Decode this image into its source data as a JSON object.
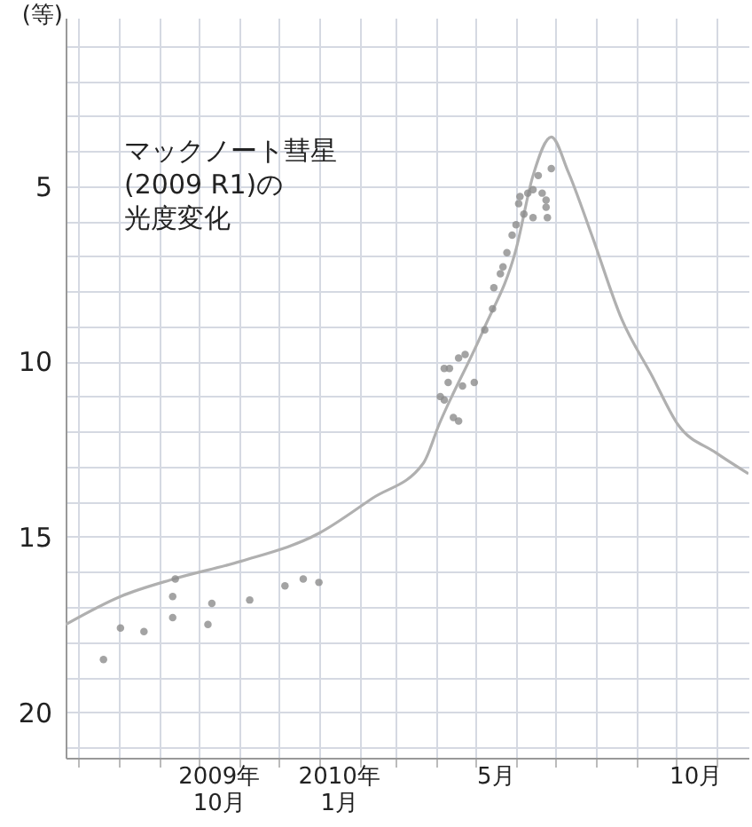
{
  "chart_data": {
    "type": "scatter",
    "ylabel": "(等)",
    "annotations": [
      "マックノート彗星(2009 R1)の光度変化"
    ],
    "xlim": [
      "2009-06-21",
      "2010-11-26"
    ],
    "xticks": [
      {
        "value": "2009-07-01",
        "label": null
      },
      {
        "value": "2009-08-01",
        "label": null
      },
      {
        "value": "2009-09-01",
        "label": null
      },
      {
        "value": "2009-10-01",
        "label": null
      },
      {
        "value": "2009-10-16",
        "label": "2009年\n10月"
      },
      {
        "value": "2009-11-01",
        "label": null
      },
      {
        "value": "2009-12-01",
        "label": null
      },
      {
        "value": "2010-01-01",
        "label": null
      },
      {
        "value": "2010-01-16",
        "label": "2010年\n1月"
      },
      {
        "value": "2010-02-01",
        "label": null
      },
      {
        "value": "2010-03-01",
        "label": null
      },
      {
        "value": "2010-04-01",
        "label": null
      },
      {
        "value": "2010-05-01",
        "label": null
      },
      {
        "value": "2010-05-16",
        "label": "5月"
      },
      {
        "value": "2010-06-01",
        "label": null
      },
      {
        "value": "2010-07-01",
        "label": null
      },
      {
        "value": "2010-08-01",
        "label": null
      },
      {
        "value": "2010-09-01",
        "label": null
      },
      {
        "value": "2010-10-01",
        "label": null
      },
      {
        "value": "2010-10-16",
        "label": "10月"
      },
      {
        "value": "2010-11-01",
        "label": null
      }
    ],
    "ylim": [
      21.3,
      0.2
    ],
    "yticks": [
      {
        "value": 1,
        "label": null
      },
      {
        "value": 2,
        "label": null
      },
      {
        "value": 3,
        "label": null
      },
      {
        "value": 4,
        "label": null
      },
      5,
      {
        "value": 6,
        "label": null
      },
      {
        "value": 7,
        "label": null
      },
      {
        "value": 8,
        "label": null
      },
      {
        "value": 9,
        "label": null
      },
      10,
      {
        "value": 11,
        "label": null
      },
      {
        "value": 12,
        "label": null
      },
      {
        "value": 13,
        "label": null
      },
      {
        "value": 14,
        "label": null
      },
      15,
      {
        "value": 16,
        "label": null
      },
      {
        "value": 17,
        "label": null
      },
      {
        "value": 18,
        "label": null
      },
      {
        "value": 19,
        "label": null
      },
      20,
      {
        "value": 21,
        "label": null
      }
    ],
    "grid": true,
    "series": [
      {
        "type": "line",
        "color": "#b0b0b0",
        "x": [
          "2009-06-21",
          "2009-08-02",
          "2009-09-12",
          "2009-11-02",
          "2010-01-01",
          "2010-02-11",
          "2010-03-22",
          "2010-04-03",
          "2010-05-07",
          "2010-06-01",
          "2010-06-14",
          "2010-06-28",
          "2010-07-11",
          "2010-07-29",
          "2010-08-21",
          "2010-09-13",
          "2010-10-03",
          "2010-11-01",
          "2010-11-26"
        ],
        "values": [
          17.5,
          16.7,
          16.2,
          15.7,
          14.9,
          13.9,
          12.9,
          11.8,
          9.1,
          6.8,
          4.7,
          3.6,
          4.6,
          6.4,
          8.8,
          10.4,
          11.8,
          12.6,
          13.2
        ]
      },
      {
        "type": "scatter",
        "marker": "circle",
        "color": "#8c8c8c",
        "x": [
          "2009-07-20",
          "2009-08-02",
          "2009-08-20",
          "2009-09-11",
          "2009-09-11",
          "2009-09-13",
          "2009-10-08",
          "2009-10-11",
          "2009-11-09",
          "2009-12-06",
          "2009-12-20",
          "2010-01-01",
          "2010-04-07",
          "2010-04-11",
          "2010-04-18",
          "2010-04-23",
          "2010-04-10",
          "2010-04-07",
          "2010-04-21",
          "2010-04-30",
          "2010-04-14",
          "2010-04-18",
          "2010-04-04",
          "2010-05-08",
          "2010-05-14",
          "2010-05-15",
          "2010-05-20",
          "2010-05-22",
          "2010-05-25",
          "2010-05-29",
          "2010-06-01",
          "2010-06-03",
          "2010-06-04",
          "2010-06-10",
          "2010-06-14",
          "2010-06-21",
          "2010-06-07",
          "2010-06-14",
          "2010-06-25",
          "2010-06-24",
          "2010-06-28",
          "2010-06-18",
          "2010-06-24"
        ],
        "values": [
          18.5,
          17.6,
          17.7,
          17.3,
          16.7,
          16.2,
          17.5,
          16.9,
          16.8,
          16.4,
          16.2,
          16.3,
          10.2,
          10.2,
          9.9,
          9.8,
          10.6,
          11.1,
          10.7,
          10.6,
          11.6,
          11.7,
          11.0,
          9.1,
          8.5,
          7.9,
          7.5,
          7.3,
          6.9,
          6.4,
          6.1,
          5.5,
          5.3,
          5.2,
          5.1,
          5.2,
          5.8,
          5.9,
          5.9,
          5.4,
          4.5,
          4.7,
          5.6
        ]
      }
    ]
  }
}
